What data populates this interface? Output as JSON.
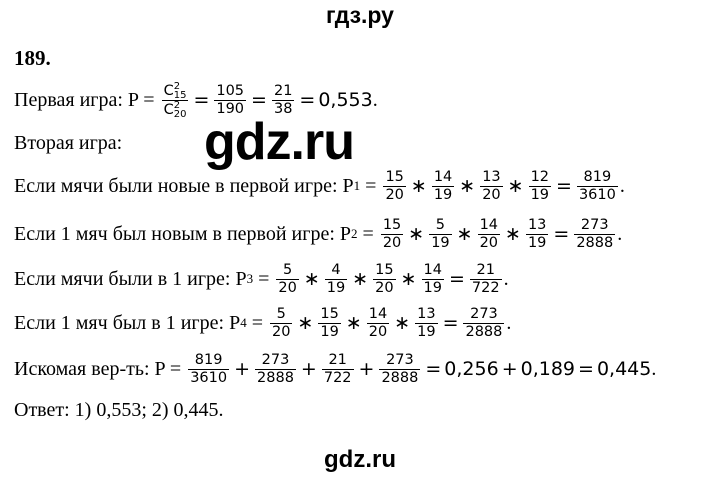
{
  "header": "гдз.ру",
  "problem_number": "189.",
  "watermark": "gdz.ru",
  "footer": "gdz.ru",
  "lines": [
    {
      "tokens": [
        {
          "text": "Первая игра: P = "
        },
        {
          "n": {
            "base": "C",
            "sup": "2",
            "sub": "15"
          },
          "d": {
            "base": "C",
            "sup": "2",
            "sub": "20"
          }
        },
        {
          "op": "="
        },
        {
          "n": "105",
          "d": "190"
        },
        {
          "op": "="
        },
        {
          "n": "21",
          "d": "38"
        },
        {
          "op": "="
        },
        {
          "math": "0,553"
        },
        {
          "text": "."
        }
      ]
    },
    {
      "tokens": [
        {
          "text": "Вторая игра:"
        }
      ]
    },
    {
      "tokens": [
        {
          "text": "Если мячи были новые в первой игре: P"
        },
        {
          "subtext": "1"
        },
        {
          "text": " = "
        },
        {
          "n": "15",
          "d": "20"
        },
        {
          "op": "∗"
        },
        {
          "n": "14",
          "d": "19"
        },
        {
          "op": "∗"
        },
        {
          "n": "13",
          "d": "20"
        },
        {
          "op": "∗"
        },
        {
          "n": "12",
          "d": "19"
        },
        {
          "op": "="
        },
        {
          "n": "819",
          "d": "3610"
        },
        {
          "text": "."
        }
      ]
    },
    {
      "tokens": [
        {
          "text": "Если 1 мяч был новым в первой игре: P"
        },
        {
          "subtext": "2"
        },
        {
          "text": " = "
        },
        {
          "n": "15",
          "d": "20"
        },
        {
          "op": "∗"
        },
        {
          "n": "5",
          "d": "19"
        },
        {
          "op": "∗"
        },
        {
          "n": "14",
          "d": "20"
        },
        {
          "op": "∗"
        },
        {
          "n": "13",
          "d": "19"
        },
        {
          "op": "="
        },
        {
          "n": "273",
          "d": "2888"
        },
        {
          "text": "."
        }
      ]
    },
    {
      "tokens": [
        {
          "text": "Если мячи были в 1 игре: P"
        },
        {
          "subtext": "3"
        },
        {
          "text": " = "
        },
        {
          "n": "5",
          "d": "20"
        },
        {
          "op": "∗"
        },
        {
          "n": "4",
          "d": "19"
        },
        {
          "op": "∗"
        },
        {
          "n": "15",
          "d": "20"
        },
        {
          "op": "∗"
        },
        {
          "n": "14",
          "d": "19"
        },
        {
          "op": "="
        },
        {
          "n": "21",
          "d": "722"
        },
        {
          "text": "."
        }
      ]
    },
    {
      "tokens": [
        {
          "text": "Если 1 мяч был в 1 игре: P"
        },
        {
          "subtext": "4"
        },
        {
          "text": " = "
        },
        {
          "n": "5",
          "d": "20"
        },
        {
          "op": "∗"
        },
        {
          "n": "15",
          "d": "19"
        },
        {
          "op": "∗"
        },
        {
          "n": "14",
          "d": "20"
        },
        {
          "op": "∗"
        },
        {
          "n": "13",
          "d": "19"
        },
        {
          "op": "="
        },
        {
          "n": "273",
          "d": "2888"
        },
        {
          "text": "."
        }
      ]
    },
    {
      "tokens": [
        {
          "text": "Искомая вер-ть: P = "
        },
        {
          "n": "819",
          "d": "3610"
        },
        {
          "op": "+"
        },
        {
          "n": "273",
          "d": "2888"
        },
        {
          "op": "+"
        },
        {
          "n": "21",
          "d": "722"
        },
        {
          "op": "+"
        },
        {
          "n": "273",
          "d": "2888"
        },
        {
          "op": "="
        },
        {
          "math": "0,256"
        },
        {
          "op": "+"
        },
        {
          "math": "0,189"
        },
        {
          "op": "="
        },
        {
          "math": "0,445"
        },
        {
          "text": "."
        }
      ]
    },
    {
      "tokens": [
        {
          "text": "Ответ: 1) 0,553; 2) 0,445."
        }
      ]
    }
  ]
}
